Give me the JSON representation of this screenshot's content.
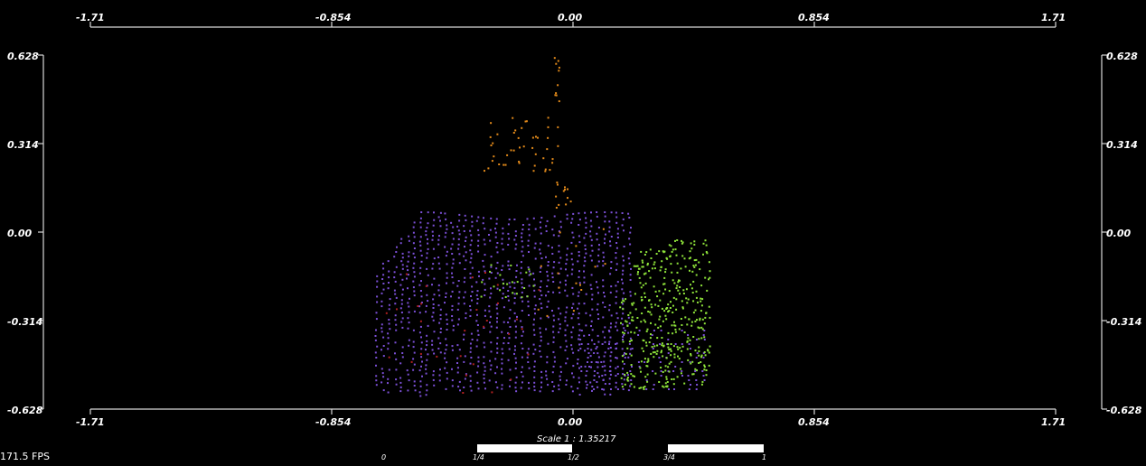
{
  "viewer": {
    "fps_text": "171.5 FPS",
    "background": "#000000"
  },
  "axes": {
    "x_ticks": [
      "-1.71",
      "-0.854",
      "0.00",
      "0.854",
      "1.71"
    ],
    "y_ticks": [
      "0.628",
      "0.314",
      "0.00",
      "-0.314",
      "-0.628"
    ]
  },
  "scale_bar": {
    "label": "Scale 1 : 1.35217",
    "ticks": [
      "0",
      "1/4",
      "1/2",
      "3/4",
      "1"
    ]
  },
  "point_cloud": {
    "colors": {
      "purple": "#7b4fd6",
      "green": "#8ee33a",
      "orange": "#e38a1a",
      "red": "#b02020"
    }
  }
}
